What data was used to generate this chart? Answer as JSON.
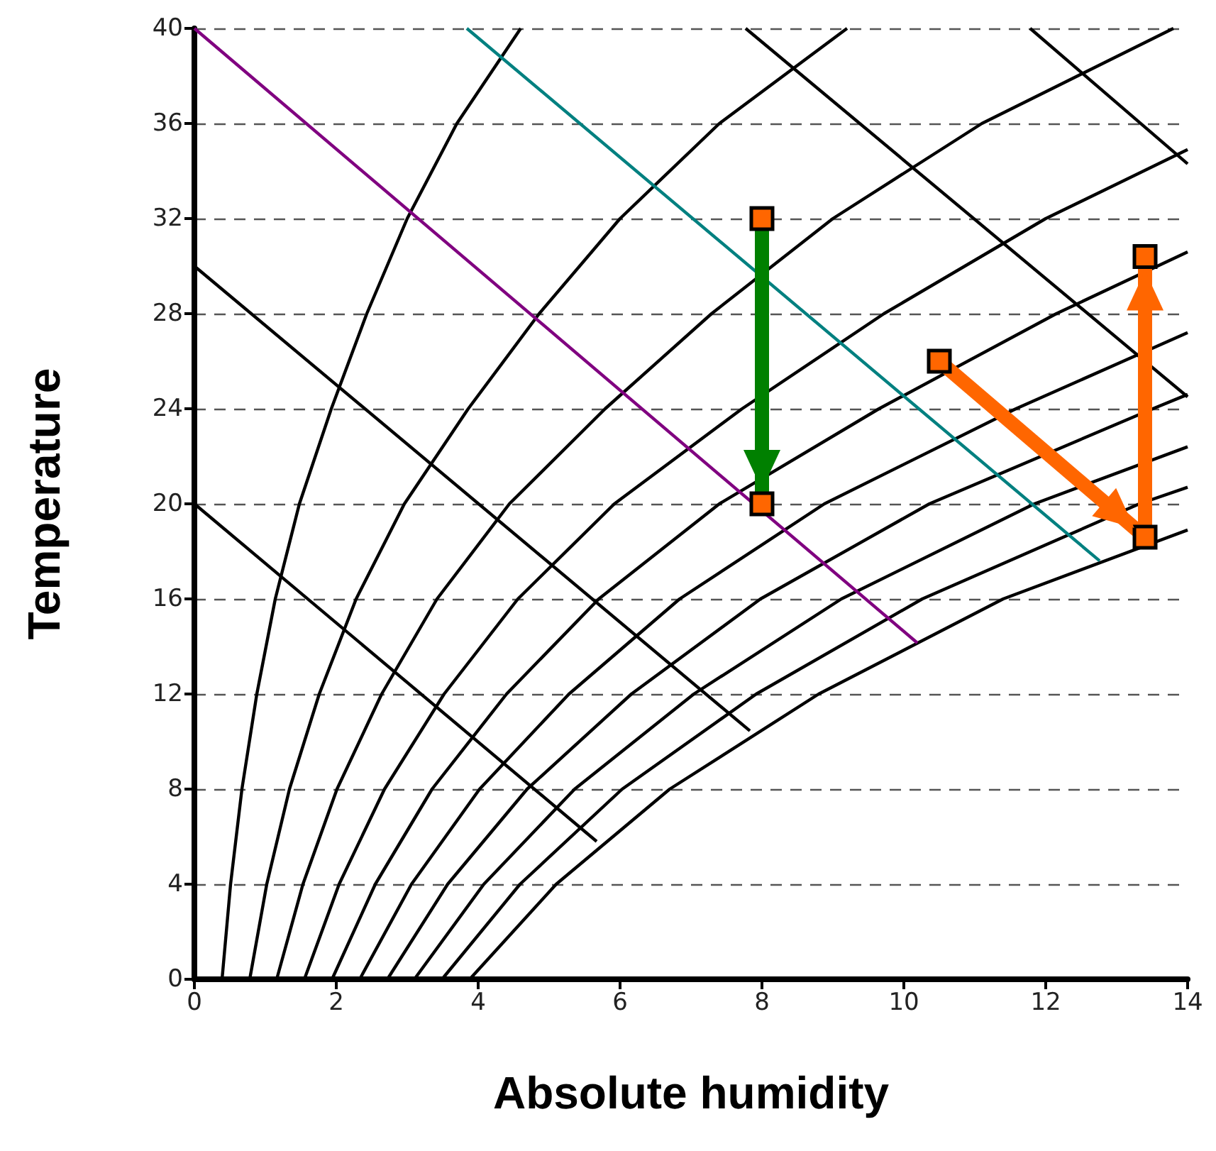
{
  "chart_data": {
    "type": "line",
    "xlabel": "Absolute humidity",
    "ylabel": "Temperature",
    "xlim": [
      0,
      14
    ],
    "xticks": [
      0,
      2,
      4,
      6,
      8,
      10,
      12,
      14
    ],
    "ylim": [
      0,
      40
    ],
    "yticks": [
      0,
      4,
      8,
      12,
      16,
      20,
      24,
      28,
      32,
      36,
      40
    ],
    "grid": "y",
    "marker": "none",
    "series": [
      {
        "color": "#000000",
        "x": [
          0.39,
          0.51,
          0.67,
          0.88,
          1.14,
          1.48,
          1.93,
          2.43,
          3.0,
          3.7,
          4.6
        ],
        "values": [
          0,
          4,
          8,
          12,
          16,
          20,
          24,
          28,
          32,
          36,
          40
        ]
      },
      {
        "color": "#000000",
        "x": [
          0.78,
          1.02,
          1.34,
          1.76,
          2.28,
          2.96,
          3.86,
          4.86,
          6.0,
          7.4,
          9.2
        ],
        "values": [
          0,
          4,
          8,
          12,
          16,
          20,
          24,
          28,
          32,
          36,
          40
        ]
      },
      {
        "color": "#000000",
        "x": [
          1.16,
          1.53,
          2.01,
          2.64,
          3.42,
          4.44,
          5.79,
          7.29,
          9.0,
          11.1,
          13.8
        ],
        "values": [
          0,
          4,
          8,
          12,
          16,
          20,
          24,
          28,
          32,
          36,
          40
        ]
      },
      {
        "color": "#000000",
        "x": [
          1.55,
          2.04,
          2.68,
          3.52,
          4.56,
          5.92,
          7.72,
          9.72,
          12.0,
          14
        ],
        "values": [
          0,
          4,
          8,
          12,
          16,
          20,
          24,
          28,
          32,
          34.9
        ]
      },
      {
        "color": "#000000",
        "x": [
          1.94,
          2.55,
          3.35,
          4.4,
          5.7,
          7.4,
          9.65,
          12.15,
          14
        ],
        "values": [
          0,
          4,
          8,
          12,
          16,
          20,
          24,
          28,
          30.6
        ]
      },
      {
        "color": "#000000",
        "x": [
          2.33,
          3.06,
          4.02,
          5.28,
          6.84,
          8.88,
          11.58,
          14
        ],
        "values": [
          0,
          4,
          8,
          12,
          16,
          20,
          24,
          27.2
        ]
      },
      {
        "color": "#000000",
        "x": [
          2.72,
          3.57,
          4.69,
          6.16,
          7.98,
          10.36,
          13.51,
          14
        ],
        "values": [
          0,
          4,
          8,
          12,
          16,
          20,
          24,
          24.6
        ]
      },
      {
        "color": "#000000",
        "x": [
          3.1,
          4.08,
          5.36,
          7.04,
          9.12,
          11.84,
          14
        ],
        "values": [
          0,
          4,
          8,
          12,
          16,
          20,
          22.4
        ]
      },
      {
        "color": "#000000",
        "x": [
          3.49,
          4.59,
          6.03,
          7.92,
          10.26,
          13.32,
          14
        ],
        "values": [
          0,
          4,
          8,
          12,
          16,
          20,
          20.7
        ]
      },
      {
        "color": "#000000",
        "x": [
          3.88,
          5.1,
          6.7,
          8.8,
          11.4,
          14
        ],
        "values": [
          0,
          4,
          8,
          12,
          16,
          18.9
        ]
      },
      {
        "color": "#000000",
        "x": [
          0,
          5.67
        ],
        "values": [
          20,
          5.8
        ]
      },
      {
        "color": "#000000",
        "x": [
          0,
          7.83
        ],
        "values": [
          30,
          10.45
        ]
      },
      {
        "color": "#800080",
        "x": [
          0,
          10.19
        ],
        "values": [
          40,
          14.15
        ]
      },
      {
        "color": "#008080",
        "x": [
          3.84,
          12.76
        ],
        "values": [
          40,
          17.6
        ]
      },
      {
        "color": "#000000",
        "x": [
          7.77,
          14
        ],
        "values": [
          40,
          24.5
        ]
      },
      {
        "color": "#000000",
        "x": [
          11.78,
          14
        ],
        "values": [
          40,
          34.3
        ]
      },
      {
        "color": "#008000",
        "x": [
          8,
          8
        ],
        "values": [
          32,
          20
        ]
      },
      {
        "color": "#ff6600",
        "x": [
          10.5,
          13.4
        ],
        "values": [
          26,
          18.6
        ]
      },
      {
        "color": "#ff6600",
        "x": [
          13.4,
          13.4
        ],
        "values": [
          18.6,
          30.4
        ]
      },
      {
        "type": "scatter",
        "marker": "square",
        "color": "#ff6600",
        "x": [
          8,
          8,
          10.5,
          13.4,
          13.4
        ],
        "values": [
          32,
          20,
          26,
          18.6,
          30.4
        ]
      }
    ]
  }
}
